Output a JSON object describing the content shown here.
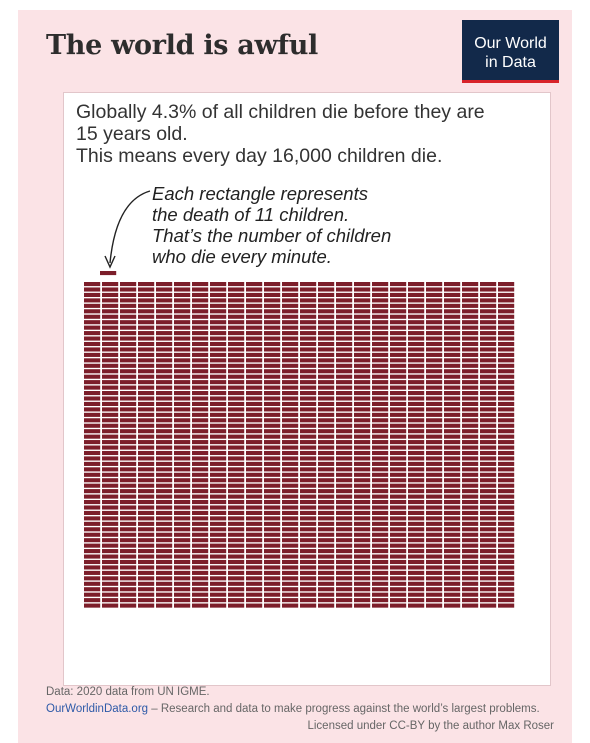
{
  "title": "The world is awful",
  "logo": {
    "line1": "Our World",
    "line2": "in Data"
  },
  "subtitle": {
    "line1": "Globally 4.3% of all children die before they are",
    "line2": "15 years old.",
    "line3": "This means every day 16,000 children die."
  },
  "annotation": {
    "line1": "Each rectangle represents",
    "line2": "the death of 11 children.",
    "line3": "That’s the number of children",
    "line4": "who die every minute."
  },
  "footer": {
    "source": "Data: 2020 data from UN IGME.",
    "site": "OurWorldinData.org",
    "tagline": " – Research and data to make progress against the world’s largest problems.",
    "license": "Licensed under CC-BY by the author Max Roser"
  },
  "colors": {
    "rect": "#7c1e2a",
    "background": "#fbe3e6",
    "logo_bg": "#12294a",
    "logo_accent": "#d8232a"
  },
  "chart_data": {
    "type": "waffle",
    "total_rectangles": 1440,
    "children_per_rectangle": 11,
    "highlighted_rectangles": 1
  }
}
